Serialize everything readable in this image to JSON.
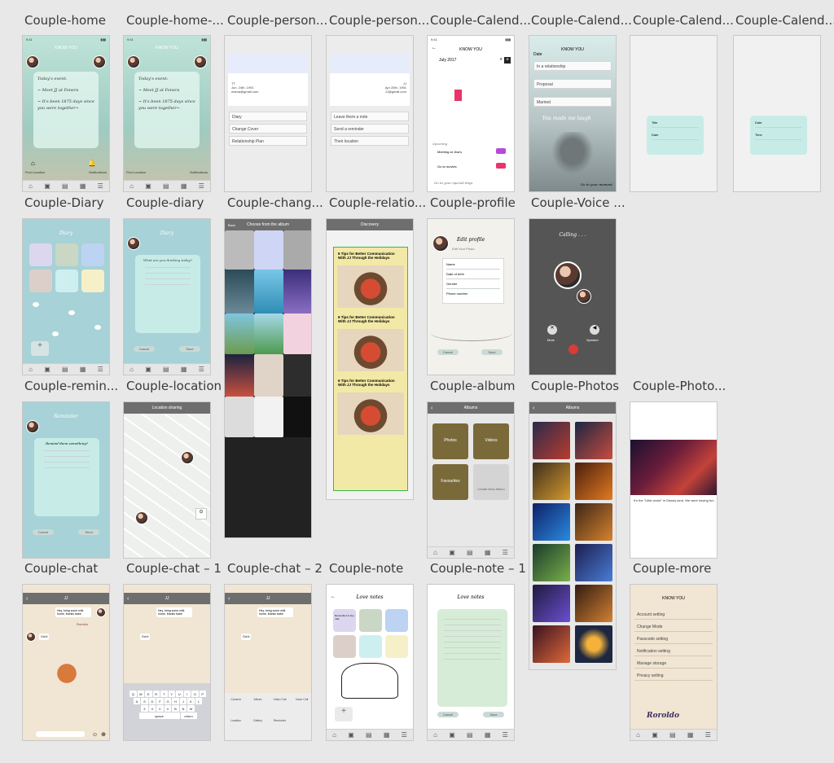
{
  "artboards": {
    "couple_home": "Couple-home",
    "couple_home_2": "Couple-home-...",
    "couple_person_1": "Couple-person...",
    "couple_person_2": "Couple-person...",
    "couple_calendar_1": "Couple-Calend...",
    "couple_calendar_2": "Couple-Calend...",
    "couple_calendar_3": "Couple-Calend...",
    "couple_calendar_4": "Couple-Calend...",
    "couple_diary_1": "Couple-Diary",
    "couple_diary_2": "Couple-diary",
    "couple_change": "Couple-chang...",
    "couple_relation": "Couple-relatio...",
    "couple_profile": "Couple-profile",
    "couple_voice": "Couple-Voice ...",
    "couple_reminder": "Couple-remin...",
    "couple_location": "Couple-location",
    "couple_album": "Couple-album",
    "couple_photos": "Couple-Photos",
    "couple_photo_detail": "Couple-Photo...",
    "couple_chat": "Couple-chat",
    "couple_chat_1": "Couple-chat – 1",
    "couple_chat_2": "Couple-chat – 2",
    "couple_note": "Couple-note",
    "couple_note_1": "Couple-note – 1",
    "couple_more": "Couple-more"
  },
  "screens": {
    "brand": "KNOW YOU",
    "time": "9:41",
    "home_card": [
      "Today's event:",
      "~ Meet JJ at Fonera",
      "~ It's been 1875 days since you were together~"
    ],
    "home_labels": [
      "Find Location",
      "Notifications"
    ],
    "person1": {
      "name": "TT",
      "dob": "Jun. 24th, 1991",
      "email": "mama@gmail.com",
      "items": [
        "Diary",
        "Change Cover",
        "Relationship Plan"
      ]
    },
    "person2": {
      "name": "JJ",
      "dob": "Apr 25th, 1991",
      "email": "JJ@gmail.com",
      "items": [
        "Leave them a note",
        "Send a reminder",
        "Their location"
      ]
    },
    "calendar": {
      "month": "July 2017",
      "upcoming": "Upcoming",
      "event1": "Meeting at Jina's",
      "event2": "Go to movies",
      "footer": "Go to your special days"
    },
    "calendar2": {
      "title": "Date",
      "rows": [
        "In a relationship",
        "Proposal",
        "Married"
      ],
      "caption": "You made me laugh",
      "footer": "Go to your moment"
    },
    "calendar3": {
      "fields": [
        "Title",
        "Date"
      ]
    },
    "calendar4": {
      "fields": [
        "Date",
        "Time"
      ]
    },
    "diary": {
      "title": "Diary",
      "prompt": "What are you thinking today?",
      "cancel": "Cancel",
      "save": "Save"
    },
    "change": {
      "left": "Back",
      "title": "Choose from the album"
    },
    "relation": {
      "title": "Discovery",
      "article": "6 Tips for Better Communication With JJ Through the Holidays"
    },
    "profile": {
      "title": "Edit profile",
      "hint": "Edit Your Photo",
      "fields": [
        "Name",
        "Date of birth",
        "Gender",
        "Phone number"
      ],
      "cancel": "Cancel",
      "save": "Save"
    },
    "voice": {
      "title": "Calling . . .",
      "mute": "Mute",
      "speaker": "Speaker"
    },
    "reminder": {
      "title": "Reminder",
      "prompt": "Remind them something?",
      "cancel": "Cancel",
      "send": "Send"
    },
    "location": {
      "title": "Location sharing"
    },
    "album": {
      "title": "Albums",
      "items": [
        "Photos",
        "Videos",
        "Favourites"
      ],
      "create": "Create New Album"
    },
    "photos": {
      "title": "Albums"
    },
    "photo_detail": {
      "caption": "It's the \"Little world\" in Disney land. We were having fun."
    },
    "chat": {
      "title": "JJ",
      "msg1": "Hey, bring some milk home, thanks babe",
      "msg2": "Got it",
      "watermark": "Roroldo"
    },
    "keyboard": {
      "rows": [
        [
          "Q",
          "W",
          "E",
          "R",
          "T",
          "Y",
          "U",
          "I",
          "O",
          "P"
        ],
        [
          "A",
          "S",
          "D",
          "F",
          "G",
          "H",
          "J",
          "K",
          "L"
        ],
        [
          "Z",
          "X",
          "C",
          "V",
          "B",
          "N",
          "M"
        ]
      ],
      "space": "space",
      "return": "return"
    },
    "chat_attach": [
      "Camera",
      "Album",
      "Video Call",
      "Voice Call",
      "Location",
      "Gallery",
      "Reminder"
    ],
    "note": {
      "title": "Love notes",
      "snippet": "Remember to buy milk"
    },
    "more": {
      "items": [
        "Account setting",
        "Change Mode",
        "Passcode setting",
        "Notification setting",
        "Manage storage",
        "Privacy setting"
      ],
      "logo": "Roroldo"
    }
  }
}
